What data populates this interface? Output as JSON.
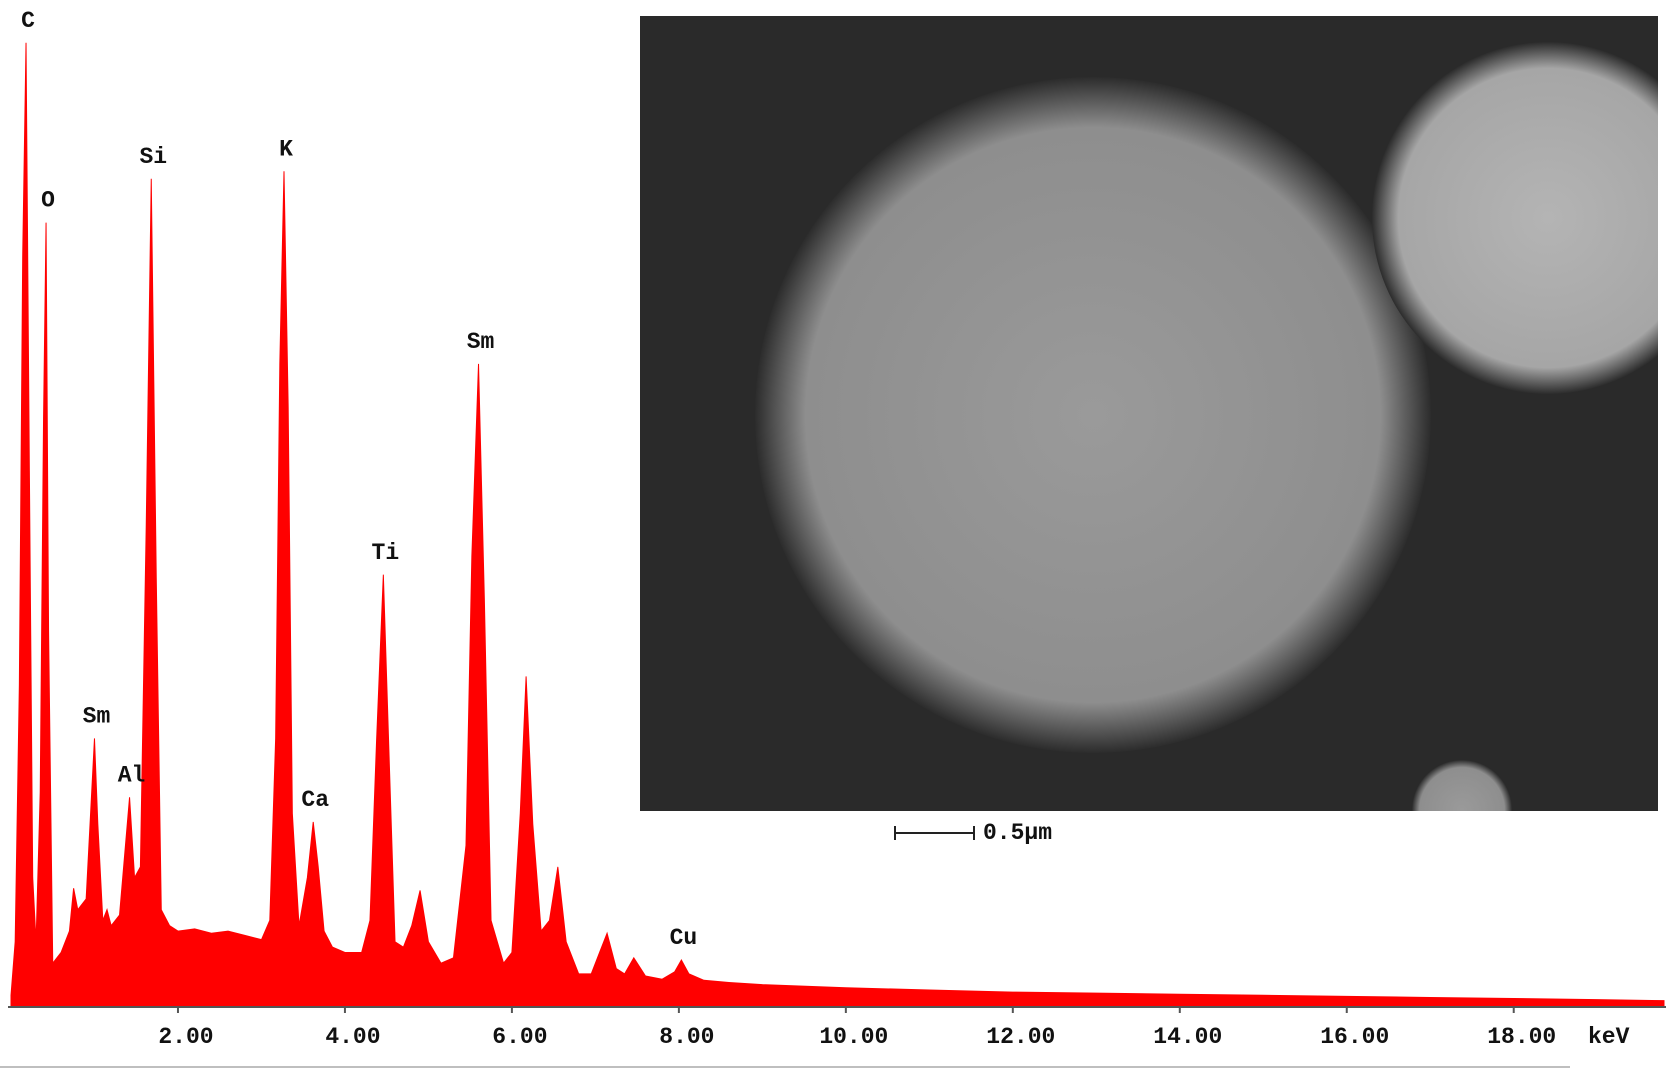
{
  "chart_data": {
    "type": "area",
    "x_label": "keV",
    "scale_bar": "0.5μm",
    "color": "#ff0000",
    "x": [
      0,
      0.05,
      0.1,
      0.14,
      0.18,
      0.22,
      0.26,
      0.3,
      0.35,
      0.39,
      0.42,
      0.45,
      0.5,
      0.6,
      0.7,
      0.75,
      0.8,
      0.9,
      0.96,
      1.0,
      1.04,
      1.1,
      1.15,
      1.2,
      1.3,
      1.36,
      1.42,
      1.48,
      1.55,
      1.62,
      1.68,
      1.74,
      1.8,
      1.9,
      2.0,
      2.2,
      2.4,
      2.6,
      2.8,
      3.0,
      3.1,
      3.17,
      3.22,
      3.27,
      3.32,
      3.37,
      3.45,
      3.55,
      3.62,
      3.68,
      3.75,
      3.85,
      4.0,
      4.2,
      4.3,
      4.38,
      4.46,
      4.53,
      4.6,
      4.7,
      4.8,
      4.9,
      5.0,
      5.15,
      5.3,
      5.45,
      5.52,
      5.6,
      5.67,
      5.75,
      5.9,
      6.0,
      6.1,
      6.17,
      6.25,
      6.35,
      6.45,
      6.55,
      6.65,
      6.8,
      6.95,
      7.05,
      7.14,
      7.25,
      7.35,
      7.46,
      7.6,
      7.8,
      7.95,
      8.03,
      8.12,
      8.3,
      8.6,
      9,
      10,
      11,
      12,
      13,
      14,
      15,
      16,
      17,
      18,
      19,
      19.8
    ],
    "values": [
      10,
      60,
      300,
      700,
      900,
      500,
      120,
      60,
      200,
      550,
      732,
      350,
      40,
      50,
      70,
      110,
      90,
      100,
      190,
      250,
      170,
      80,
      90,
      75,
      85,
      140,
      195,
      120,
      130,
      450,
      773,
      400,
      90,
      75,
      70,
      72,
      68,
      70,
      66,
      62,
      80,
      250,
      600,
      780,
      560,
      180,
      75,
      120,
      172,
      130,
      70,
      55,
      50,
      50,
      80,
      250,
      403,
      230,
      60,
      55,
      75,
      108,
      60,
      40,
      45,
      150,
      420,
      600,
      380,
      80,
      40,
      50,
      180,
      308,
      170,
      70,
      80,
      130,
      60,
      30,
      30,
      50,
      68,
      35,
      30,
      45,
      28,
      25,
      32,
      43,
      30,
      24,
      22,
      20,
      17,
      15,
      13,
      12,
      11,
      10,
      9,
      8,
      7,
      6,
      5
    ],
    "annotations": [
      {
        "text": "C",
        "x": 0.18,
        "y": 900
      },
      {
        "text": "O",
        "x": 0.42,
        "y": 732
      },
      {
        "text": "Sm",
        "x": 1.0,
        "y": 250
      },
      {
        "text": "Al",
        "x": 1.42,
        "y": 195
      },
      {
        "text": "Si",
        "x": 1.68,
        "y": 773
      },
      {
        "text": "K",
        "x": 3.27,
        "y": 780
      },
      {
        "text": "Ca",
        "x": 3.62,
        "y": 172
      },
      {
        "text": "Ti",
        "x": 4.46,
        "y": 403
      },
      {
        "text": "Sm",
        "x": 5.6,
        "y": 600
      },
      {
        "text": "Cu",
        "x": 8.03,
        "y": 43
      }
    ],
    "xlim": [
      0,
      19.8
    ],
    "ylim": [
      0,
      940
    ],
    "xticks": [
      {
        "value": 2,
        "label": "2.00"
      },
      {
        "value": 4,
        "label": "4.00"
      },
      {
        "value": 6,
        "label": "6.00"
      },
      {
        "value": 8,
        "label": "8.00"
      },
      {
        "value": 10,
        "label": "10.00"
      },
      {
        "value": 12,
        "label": "12.00"
      },
      {
        "value": 14,
        "label": "14.00"
      },
      {
        "value": 16,
        "label": "16.00"
      },
      {
        "value": 18,
        "label": "18.00"
      }
    ]
  }
}
